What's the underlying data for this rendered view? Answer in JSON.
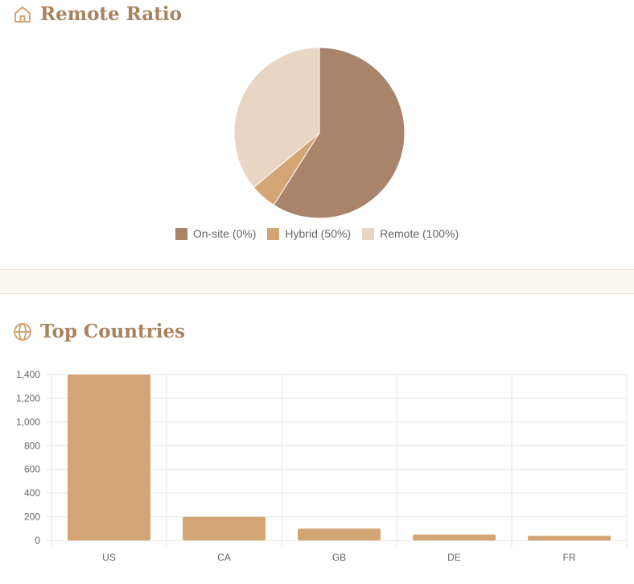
{
  "sections": {
    "remote": {
      "title": "Remote Ratio",
      "icon": "home-icon"
    },
    "countries": {
      "title": "Top Countries",
      "icon": "globe-icon"
    }
  },
  "colors": {
    "title": "#a9835f",
    "onsite": "#a9846a",
    "hybrid": "#d3a574",
    "remote": "#e8d5c4",
    "bar": "#d3a574",
    "grid": "#e6e6e6"
  },
  "chart_data": [
    {
      "type": "pie",
      "title": "Remote Ratio",
      "labels": [
        "On-site (0%)",
        "Hybrid (50%)",
        "Remote (100%)"
      ],
      "values": [
        59,
        5,
        36
      ],
      "colors": [
        "#a9846a",
        "#d3a574",
        "#e8d5c4"
      ],
      "legend": "bottom"
    },
    {
      "type": "bar",
      "title": "Top Countries",
      "categories": [
        "US",
        "CA",
        "GB",
        "DE",
        "FR"
      ],
      "values": [
        1400,
        200,
        100,
        50,
        40
      ],
      "yticks": [
        "0",
        "200",
        "400",
        "600",
        "800",
        "1,000",
        "1,200",
        "1,400"
      ],
      "ylim": [
        0,
        1400
      ],
      "grid": true
    }
  ]
}
